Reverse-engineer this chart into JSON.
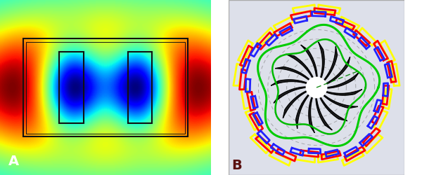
{
  "panel_A": {
    "label": "A",
    "label_color": "white"
  },
  "panel_B": {
    "label": "B",
    "label_color": "#5a1010",
    "bg_color": "#dde0ea",
    "n_blades": 16,
    "dashed_circles": [
      0.28,
      0.38,
      0.5,
      0.62,
      0.74
    ],
    "green_outer_R": 0.72,
    "green_inner_R": 0.58,
    "outer_contour_R": 0.84
  }
}
